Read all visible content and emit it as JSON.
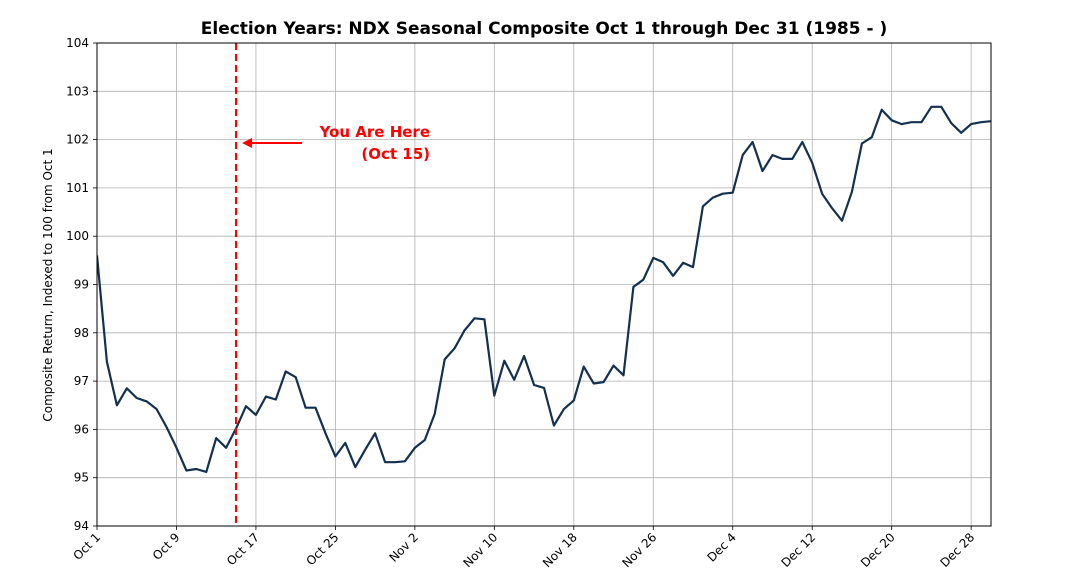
{
  "chart_data": {
    "type": "line",
    "title": "Election Years: NDX Seasonal Composite Oct 1 through Dec 31 (1985 - )",
    "xlabel": "",
    "ylabel": "Composite Return, Indexed to 100 from Oct 1",
    "ylim": [
      94,
      104
    ],
    "y_ticks": [
      "94",
      "95",
      "96",
      "97",
      "98",
      "99",
      "100",
      "101",
      "102",
      "103",
      "104"
    ],
    "x_ticks": [
      "Oct 1",
      "Oct 9",
      "Oct 17",
      "Oct 25",
      "Nov 2",
      "Nov 10",
      "Nov 18",
      "Nov 26",
      "Dec 4",
      "Dec 12",
      "Dec 20",
      "Dec 28"
    ],
    "x_tick_days": [
      0,
      8,
      16,
      24,
      32,
      40,
      48,
      56,
      64,
      72,
      80,
      88
    ],
    "xlim_days": [
      0,
      90
    ],
    "x_unit": "days after Oct 1",
    "grid": true,
    "line_color": "#14304f",
    "series": [
      {
        "values": [
          [
            0,
            99.6
          ],
          [
            1,
            97.4
          ],
          [
            2,
            96.5
          ],
          [
            3,
            96.85
          ],
          [
            4,
            96.65
          ],
          [
            5,
            96.58
          ],
          [
            6,
            96.42
          ],
          [
            7,
            96.05
          ],
          [
            8,
            95.62
          ],
          [
            9,
            95.15
          ],
          [
            10,
            95.18
          ],
          [
            11,
            95.12
          ],
          [
            12,
            95.82
          ],
          [
            13,
            95.62
          ],
          [
            14,
            96.02
          ],
          [
            15,
            96.48
          ],
          [
            16,
            96.3
          ],
          [
            17,
            96.68
          ],
          [
            18,
            96.62
          ],
          [
            19,
            97.2
          ],
          [
            20,
            97.08
          ],
          [
            21,
            96.45
          ],
          [
            22,
            96.45
          ],
          [
            23,
            95.92
          ],
          [
            24,
            95.44
          ],
          [
            25,
            95.72
          ],
          [
            26,
            95.22
          ],
          [
            27,
            95.58
          ],
          [
            28,
            95.92
          ],
          [
            29,
            95.32
          ],
          [
            30,
            95.32
          ],
          [
            31,
            95.34
          ],
          [
            32,
            95.62
          ],
          [
            33,
            95.78
          ],
          [
            34,
            96.32
          ],
          [
            35,
            97.45
          ],
          [
            36,
            97.68
          ],
          [
            37,
            98.05
          ],
          [
            38,
            98.3
          ],
          [
            39,
            98.28
          ],
          [
            40,
            96.7
          ],
          [
            41,
            97.42
          ],
          [
            42,
            97.03
          ],
          [
            43,
            97.52
          ],
          [
            44,
            96.92
          ],
          [
            45,
            96.86
          ],
          [
            46,
            96.08
          ],
          [
            47,
            96.42
          ],
          [
            48,
            96.6
          ],
          [
            49,
            97.3
          ],
          [
            50,
            96.95
          ],
          [
            51,
            96.98
          ],
          [
            52,
            97.32
          ],
          [
            53,
            97.12
          ],
          [
            54,
            98.95
          ],
          [
            55,
            99.1
          ],
          [
            56,
            99.55
          ],
          [
            57,
            99.46
          ],
          [
            58,
            99.18
          ],
          [
            59,
            99.45
          ],
          [
            60,
            99.36
          ],
          [
            61,
            100.62
          ],
          [
            62,
            100.8
          ],
          [
            63,
            100.88
          ],
          [
            64,
            100.9
          ],
          [
            65,
            101.68
          ],
          [
            66,
            101.95
          ],
          [
            67,
            101.35
          ],
          [
            68,
            101.68
          ],
          [
            69,
            101.6
          ],
          [
            70,
            101.6
          ],
          [
            71,
            101.95
          ],
          [
            72,
            101.52
          ],
          [
            73,
            100.88
          ],
          [
            74,
            100.58
          ],
          [
            75,
            100.32
          ],
          [
            76,
            100.92
          ],
          [
            77,
            101.92
          ],
          [
            78,
            102.05
          ],
          [
            79,
            102.62
          ],
          [
            80,
            102.4
          ],
          [
            81,
            102.32
          ],
          [
            82,
            102.36
          ],
          [
            83,
            102.36
          ],
          [
            84,
            102.68
          ],
          [
            85,
            102.68
          ],
          [
            86,
            102.34
          ],
          [
            87,
            102.14
          ],
          [
            88,
            102.32
          ],
          [
            89,
            102.36
          ],
          [
            90,
            102.38
          ],
          [
            91,
            102.6
          ]
        ]
      }
    ],
    "marker": {
      "label_line1": "You Are Here",
      "label_line2": "(Oct 15)",
      "day": 14,
      "arrow_y_value": 101.93,
      "color": "#ff0000",
      "style": "dashed"
    }
  }
}
